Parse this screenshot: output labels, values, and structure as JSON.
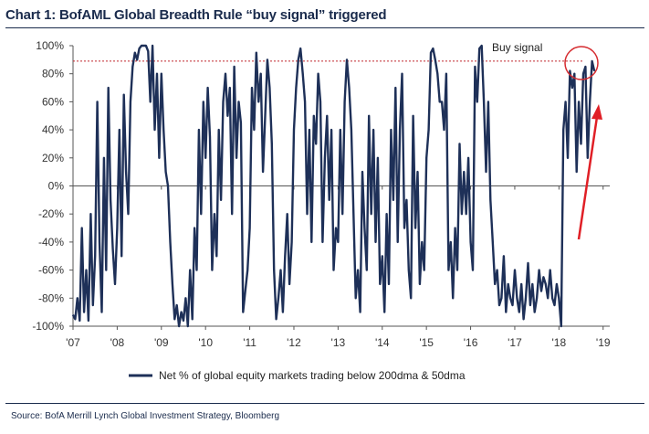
{
  "title": "Chart 1: BofAML Global Breadth Rule “buy signal” triggered",
  "source": "Source:  BofA Merrill Lynch Global Investment Strategy, Bloomberg",
  "colors": {
    "series": "#1e3058",
    "signal_line": "#c0272d",
    "arrow": "#e01f26",
    "circle": "#d52b2f",
    "axis": "#555555"
  },
  "chart_data": {
    "type": "line",
    "title": "BofAML Global Breadth Rule “buy signal” triggered",
    "xlabel": "",
    "ylabel": "",
    "xlim": [
      2007.0,
      2019.15
    ],
    "ylim": [
      -100,
      100
    ],
    "yticks": [
      -100,
      -80,
      -60,
      -40,
      -20,
      0,
      20,
      40,
      60,
      80,
      100
    ],
    "ytick_labels": [
      "-100%",
      "-80%",
      "-60%",
      "-40%",
      "-20%",
      "0%",
      "20%",
      "40%",
      "60%",
      "80%",
      "100%"
    ],
    "xticks": [
      2007,
      2008,
      2009,
      2010,
      2011,
      2012,
      2013,
      2014,
      2015,
      2016,
      2017,
      2018,
      2019
    ],
    "xtick_labels": [
      "'07",
      "'08",
      "'09",
      "'10",
      "'11",
      "'12",
      "'13",
      "'14",
      "'15",
      "'16",
      "'17",
      "'18",
      "'19"
    ],
    "signal_level": 89,
    "annotation": "Buy signal",
    "legend": [
      "Net % of global equity markets trading below 200dma & 50dma"
    ],
    "series": [
      {
        "name": "Net % of global equity markets trading below 200dma & 50dma",
        "x": [
          2007.0,
          2007.05,
          2007.1,
          2007.15,
          2007.2,
          2007.25,
          2007.3,
          2007.35,
          2007.4,
          2007.45,
          2007.5,
          2007.55,
          2007.6,
          2007.65,
          2007.7,
          2007.75,
          2007.8,
          2007.85,
          2007.9,
          2007.95,
          2008.0,
          2008.05,
          2008.1,
          2008.15,
          2008.2,
          2008.25,
          2008.3,
          2008.35,
          2008.4,
          2008.45,
          2008.5,
          2008.55,
          2008.6,
          2008.65,
          2008.7,
          2008.75,
          2008.8,
          2008.85,
          2008.9,
          2008.95,
          2009.0,
          2009.05,
          2009.1,
          2009.15,
          2009.2,
          2009.25,
          2009.3,
          2009.35,
          2009.4,
          2009.45,
          2009.5,
          2009.55,
          2009.6,
          2009.65,
          2009.7,
          2009.75,
          2009.8,
          2009.85,
          2009.9,
          2009.95,
          2010.0,
          2010.05,
          2010.1,
          2010.15,
          2010.2,
          2010.25,
          2010.3,
          2010.35,
          2010.4,
          2010.45,
          2010.5,
          2010.55,
          2010.6,
          2010.65,
          2010.7,
          2010.75,
          2010.8,
          2010.85,
          2010.9,
          2010.95,
          2011.0,
          2011.05,
          2011.1,
          2011.15,
          2011.2,
          2011.25,
          2011.3,
          2011.35,
          2011.4,
          2011.45,
          2011.5,
          2011.55,
          2011.6,
          2011.65,
          2011.7,
          2011.75,
          2011.8,
          2011.85,
          2011.9,
          2011.95,
          2012.0,
          2012.05,
          2012.1,
          2012.15,
          2012.2,
          2012.25,
          2012.3,
          2012.35,
          2012.4,
          2012.45,
          2012.5,
          2012.55,
          2012.6,
          2012.65,
          2012.7,
          2012.75,
          2012.8,
          2012.85,
          2012.9,
          2012.95,
          2013.0,
          2013.05,
          2013.1,
          2013.15,
          2013.2,
          2013.25,
          2013.3,
          2013.35,
          2013.4,
          2013.45,
          2013.5,
          2013.55,
          2013.6,
          2013.65,
          2013.7,
          2013.75,
          2013.8,
          2013.85,
          2013.9,
          2013.95,
          2014.0,
          2014.05,
          2014.1,
          2014.15,
          2014.2,
          2014.25,
          2014.3,
          2014.35,
          2014.4,
          2014.45,
          2014.5,
          2014.55,
          2014.6,
          2014.65,
          2014.7,
          2014.75,
          2014.8,
          2014.85,
          2014.9,
          2014.95,
          2015.0,
          2015.05,
          2015.1,
          2015.15,
          2015.2,
          2015.25,
          2015.3,
          2015.35,
          2015.4,
          2015.45,
          2015.5,
          2015.55,
          2015.6,
          2015.65,
          2015.7,
          2015.75,
          2015.8,
          2015.85,
          2015.9,
          2015.95,
          2016.0,
          2016.05,
          2016.1,
          2016.15,
          2016.2,
          2016.25,
          2016.3,
          2016.35,
          2016.4,
          2016.45,
          2016.5,
          2016.55,
          2016.6,
          2016.65,
          2016.7,
          2016.75,
          2016.8,
          2016.85,
          2016.9,
          2016.95,
          2017.0,
          2017.05,
          2017.1,
          2017.15,
          2017.2,
          2017.25,
          2017.3,
          2017.35,
          2017.4,
          2017.45,
          2017.5,
          2017.55,
          2017.6,
          2017.65,
          2017.7,
          2017.75,
          2017.8,
          2017.85,
          2017.9,
          2017.95,
          2018.0,
          2018.05,
          2018.1,
          2018.15,
          2018.2,
          2018.25,
          2018.3,
          2018.35,
          2018.4,
          2018.45,
          2018.5,
          2018.55,
          2018.6,
          2018.65,
          2018.7,
          2018.75,
          2018.8
        ],
        "values": [
          -92,
          -95,
          -80,
          -96,
          -30,
          -90,
          -60,
          -96,
          -20,
          -85,
          -50,
          60,
          -40,
          -90,
          20,
          -60,
          70,
          -10,
          -45,
          -70,
          -30,
          40,
          -50,
          65,
          10,
          -20,
          60,
          85,
          95,
          90,
          98,
          100,
          100,
          100,
          96,
          60,
          100,
          40,
          80,
          20,
          80,
          40,
          10,
          0,
          -40,
          -70,
          -95,
          -85,
          -100,
          -90,
          -96,
          -80,
          -100,
          -60,
          -95,
          -30,
          -60,
          40,
          -20,
          60,
          20,
          70,
          35,
          -60,
          -20,
          -50,
          40,
          -10,
          60,
          80,
          50,
          70,
          -20,
          85,
          20,
          60,
          45,
          -90,
          -75,
          -60,
          -30,
          70,
          40,
          95,
          60,
          80,
          10,
          50,
          90,
          70,
          30,
          -60,
          -95,
          -80,
          -60,
          -90,
          -50,
          -20,
          -70,
          -40,
          40,
          70,
          90,
          98,
          80,
          60,
          -20,
          40,
          -40,
          50,
          30,
          80,
          60,
          -40,
          20,
          50,
          -10,
          40,
          -60,
          -30,
          -40,
          40,
          -20,
          60,
          90,
          70,
          40,
          -20,
          -80,
          -60,
          -90,
          10,
          -30,
          -60,
          50,
          -20,
          40,
          -40,
          20,
          -70,
          -50,
          -90,
          -20,
          -70,
          40,
          -10,
          70,
          -40,
          40,
          80,
          -30,
          -10,
          -60,
          -80,
          50,
          -30,
          10,
          -70,
          -40,
          -60,
          20,
          40,
          95,
          98,
          90,
          80,
          60,
          60,
          40,
          80,
          -60,
          -40,
          -80,
          -30,
          -60,
          30,
          -20,
          10,
          -20,
          20,
          -40,
          -60,
          85,
          60,
          98,
          100,
          60,
          10,
          60,
          -10,
          -40,
          -70,
          -60,
          -85,
          -80,
          -50,
          -90,
          -70,
          -80,
          -85,
          -60,
          -80,
          -90,
          -70,
          -95,
          -80,
          -55,
          -85,
          -70,
          -90,
          -80,
          -60,
          -75,
          -65,
          -70,
          -80,
          -60,
          -80,
          -85,
          -70,
          -80,
          -100,
          40,
          60,
          20,
          82,
          70,
          80,
          10,
          60,
          30,
          80,
          85,
          20,
          60,
          89,
          82
        ]
      }
    ]
  }
}
